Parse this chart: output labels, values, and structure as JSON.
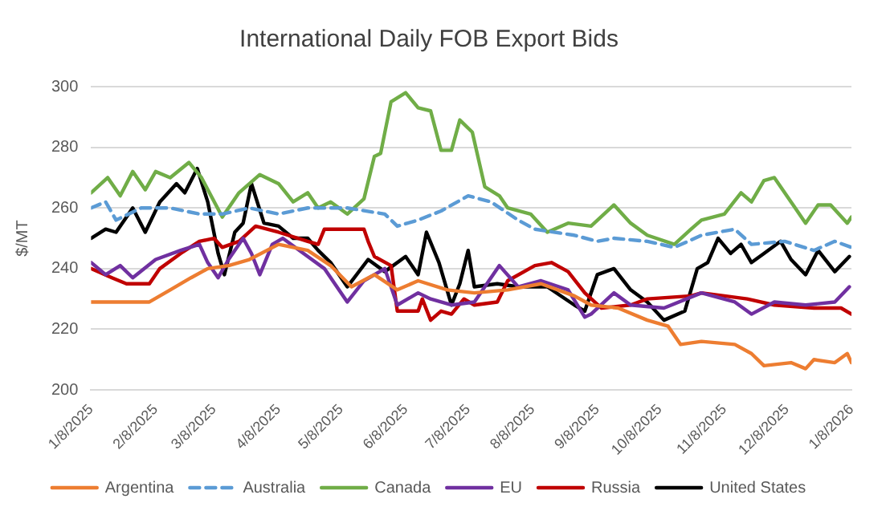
{
  "chart_data": {
    "type": "line",
    "title": "International Daily FOB Export Bids",
    "ylabel": "$/MT",
    "xlim": [
      "2025-01-08",
      "2026-01-08"
    ],
    "xticks": [
      {
        "value": "2025-01-08",
        "label": "1/8/2025"
      },
      {
        "value": "2025-02-08",
        "label": "2/8/2025"
      },
      {
        "value": "2025-03-08",
        "label": "3/8/2025"
      },
      {
        "value": "2025-04-08",
        "label": "4/8/2025"
      },
      {
        "value": "2025-05-08",
        "label": "5/8/2025"
      },
      {
        "value": "2025-06-08",
        "label": "6/8/2025"
      },
      {
        "value": "2025-07-08",
        "label": "7/8/2025"
      },
      {
        "value": "2025-08-08",
        "label": "8/8/2025"
      },
      {
        "value": "2025-09-08",
        "label": "9/8/2025"
      },
      {
        "value": "2025-10-08",
        "label": "10/8/2025"
      },
      {
        "value": "2025-11-08",
        "label": "11/8/2025"
      },
      {
        "value": "2025-12-08",
        "label": "12/8/2025"
      },
      {
        "value": "2026-01-08",
        "label": "1/8/2026"
      }
    ],
    "ylim": [
      200,
      300
    ],
    "yticks": [
      200,
      220,
      240,
      260,
      280,
      300
    ],
    "grid": "y",
    "legend": "bottom",
    "marker": "none",
    "series": [
      {
        "name": "Argentina",
        "color": "#ed7d31",
        "line_style": "solid",
        "x": [
          "2025-01-08",
          "2025-02-05",
          "2025-02-15",
          "2025-02-25",
          "2025-03-05",
          "2025-03-15",
          "2025-03-25",
          "2025-04-08",
          "2025-04-22",
          "2025-05-03",
          "2025-05-13",
          "2025-05-24",
          "2025-06-04",
          "2025-06-14",
          "2025-06-28",
          "2025-07-11",
          "2025-07-27",
          "2025-08-12",
          "2025-08-28",
          "2025-09-05",
          "2025-09-18",
          "2025-10-02",
          "2025-10-12",
          "2025-10-18",
          "2025-10-28",
          "2025-11-13",
          "2025-11-21",
          "2025-11-27",
          "2025-12-10",
          "2025-12-17",
          "2025-12-21",
          "2025-12-31",
          "2026-01-06",
          "2026-01-08"
        ],
        "values": [
          229,
          229,
          233,
          237,
          240,
          241,
          243,
          248,
          246,
          241,
          234,
          238,
          233,
          236,
          233,
          232,
          233,
          235,
          231,
          228,
          227,
          223,
          221,
          215,
          216,
          215,
          212,
          208,
          209,
          207,
          210,
          209,
          212,
          209
        ]
      },
      {
        "name": "Australia",
        "color": "#5b9bd5",
        "line_style": "dashed",
        "x": [
          "2025-01-08",
          "2025-01-15",
          "2025-01-20",
          "2025-02-01",
          "2025-02-15",
          "2025-03-01",
          "2025-03-12",
          "2025-03-25",
          "2025-04-08",
          "2025-04-22",
          "2025-05-11",
          "2025-05-29",
          "2025-06-04",
          "2025-06-14",
          "2025-06-25",
          "2025-07-08",
          "2025-07-19",
          "2025-08-01",
          "2025-08-09",
          "2025-08-28",
          "2025-09-08",
          "2025-09-16",
          "2025-10-02",
          "2025-10-15",
          "2025-10-28",
          "2025-11-13",
          "2025-11-21",
          "2025-12-07",
          "2025-12-21",
          "2025-12-31",
          "2026-01-08"
        ],
        "values": [
          260,
          262,
          256,
          260,
          260,
          258,
          258,
          260,
          258,
          260,
          260,
          258,
          254,
          256,
          259,
          264,
          262,
          256,
          253,
          251,
          249,
          250,
          249,
          247,
          251,
          253,
          248,
          249,
          246,
          249,
          247
        ]
      },
      {
        "name": "Canada",
        "color": "#70ad47",
        "line_style": "solid",
        "x": [
          "2025-01-08",
          "2025-01-16",
          "2025-01-22",
          "2025-01-28",
          "2025-02-03",
          "2025-02-08",
          "2025-02-15",
          "2025-02-24",
          "2025-03-02",
          "2025-03-12",
          "2025-03-20",
          "2025-03-30",
          "2025-04-08",
          "2025-04-15",
          "2025-04-22",
          "2025-04-27",
          "2025-05-03",
          "2025-05-11",
          "2025-05-19",
          "2025-05-24",
          "2025-05-27",
          "2025-06-01",
          "2025-06-08",
          "2025-06-14",
          "2025-06-20",
          "2025-06-25",
          "2025-06-30",
          "2025-07-04",
          "2025-07-10",
          "2025-07-16",
          "2025-07-23",
          "2025-07-27",
          "2025-08-07",
          "2025-08-15",
          "2025-08-25",
          "2025-09-05",
          "2025-09-16",
          "2025-09-24",
          "2025-10-02",
          "2025-10-15",
          "2025-10-23",
          "2025-10-28",
          "2025-11-08",
          "2025-11-16",
          "2025-11-21",
          "2025-11-27",
          "2025-12-02",
          "2025-12-10",
          "2025-12-17",
          "2025-12-23",
          "2025-12-29",
          "2026-01-06",
          "2026-01-08"
        ],
        "values": [
          265,
          270,
          264,
          272,
          266,
          272,
          270,
          275,
          270,
          257,
          265,
          271,
          268,
          262,
          265,
          260,
          262,
          258,
          263,
          277,
          278,
          295,
          298,
          293,
          292,
          279,
          279,
          289,
          285,
          267,
          264,
          260,
          258,
          252,
          255,
          254,
          261,
          255,
          251,
          248,
          253,
          256,
          258,
          265,
          262,
          269,
          270,
          262,
          255,
          261,
          261,
          255,
          257
        ]
      },
      {
        "name": "EU",
        "color": "#7030a0",
        "line_style": "solid",
        "x": [
          "2025-01-08",
          "2025-01-15",
          "2025-01-22",
          "2025-01-28",
          "2025-02-08",
          "2025-02-20",
          "2025-03-01",
          "2025-03-05",
          "2025-03-10",
          "2025-03-15",
          "2025-03-22",
          "2025-03-26",
          "2025-03-30",
          "2025-04-05",
          "2025-04-10",
          "2025-04-22",
          "2025-04-30",
          "2025-05-11",
          "2025-05-19",
          "2025-05-29",
          "2025-06-04",
          "2025-06-14",
          "2025-06-20",
          "2025-06-30",
          "2025-07-11",
          "2025-07-23",
          "2025-08-01",
          "2025-08-12",
          "2025-08-25",
          "2025-09-02",
          "2025-09-05",
          "2025-09-16",
          "2025-09-24",
          "2025-10-10",
          "2025-10-28",
          "2025-11-13",
          "2025-11-21",
          "2025-12-02",
          "2025-12-17",
          "2025-12-31",
          "2026-01-07"
        ],
        "values": [
          242,
          238,
          241,
          237,
          243,
          246,
          248,
          242,
          237,
          243,
          250,
          245,
          238,
          248,
          250,
          244,
          240,
          229,
          236,
          240,
          228,
          232,
          230,
          228,
          229,
          241,
          234,
          236,
          233,
          224,
          225,
          232,
          228,
          227,
          232,
          229,
          225,
          229,
          228,
          229,
          234
        ]
      },
      {
        "name": "Russia",
        "color": "#c00000",
        "line_style": "solid",
        "x": [
          "2025-01-08",
          "2025-01-18",
          "2025-01-25",
          "2025-02-05",
          "2025-02-10",
          "2025-02-20",
          "2025-03-01",
          "2025-03-08",
          "2025-03-12",
          "2025-03-20",
          "2025-03-28",
          "2025-04-08",
          "2025-04-22",
          "2025-04-27",
          "2025-04-30",
          "2025-05-19",
          "2025-05-21",
          "2025-05-24",
          "2025-06-01",
          "2025-06-04",
          "2025-06-14",
          "2025-06-16",
          "2025-06-20",
          "2025-06-25",
          "2025-06-30",
          "2025-07-06",
          "2025-07-11",
          "2025-07-22",
          "2025-07-27",
          "2025-08-09",
          "2025-08-17",
          "2025-08-25",
          "2025-09-02",
          "2025-09-10",
          "2025-09-24",
          "2025-10-02",
          "2025-10-23",
          "2025-10-28",
          "2025-11-19",
          "2025-12-02",
          "2025-12-21",
          "2026-01-03",
          "2026-01-08"
        ],
        "values": [
          240,
          237,
          235,
          235,
          240,
          245,
          249,
          250,
          247,
          249,
          254,
          252,
          249,
          248,
          253,
          253,
          249,
          244,
          241,
          226,
          226,
          230,
          223,
          226,
          225,
          230,
          228,
          229,
          236,
          241,
          242,
          239,
          232,
          227,
          228,
          230,
          231,
          232,
          230,
          228,
          227,
          227,
          225
        ]
      },
      {
        "name": "United States",
        "color": "#000000",
        "line_style": "solid",
        "x": [
          "2025-01-08",
          "2025-01-15",
          "2025-01-20",
          "2025-01-28",
          "2025-02-03",
          "2025-02-10",
          "2025-02-18",
          "2025-02-22",
          "2025-02-28",
          "2025-03-05",
          "2025-03-10",
          "2025-03-13",
          "2025-03-18",
          "2025-03-22",
          "2025-03-26",
          "2025-04-01",
          "2025-04-08",
          "2025-04-15",
          "2025-04-22",
          "2025-04-27",
          "2025-05-03",
          "2025-05-11",
          "2025-05-21",
          "2025-05-29",
          "2025-06-08",
          "2025-06-14",
          "2025-06-18",
          "2025-06-24",
          "2025-06-30",
          "2025-07-04",
          "2025-07-08",
          "2025-07-11",
          "2025-07-22",
          "2025-08-01",
          "2025-08-15",
          "2025-08-28",
          "2025-09-02",
          "2025-09-08",
          "2025-09-16",
          "2025-09-24",
          "2025-10-02",
          "2025-10-10",
          "2025-10-20",
          "2025-10-26",
          "2025-10-31",
          "2025-11-05",
          "2025-11-11",
          "2025-11-16",
          "2025-11-21",
          "2025-11-27",
          "2025-12-05",
          "2025-12-10",
          "2025-12-17",
          "2025-12-23",
          "2025-12-31",
          "2026-01-07"
        ],
        "values": [
          250,
          253,
          252,
          260,
          252,
          262,
          268,
          265,
          273,
          262,
          245,
          238,
          252,
          255,
          268,
          255,
          254,
          250,
          250,
          246,
          242,
          234,
          243,
          239,
          244,
          238,
          252,
          242,
          228,
          235,
          246,
          234,
          235,
          234,
          234,
          228,
          226,
          238,
          240,
          233,
          229,
          223,
          226,
          240,
          242,
          250,
          245,
          248,
          242,
          245,
          249,
          243,
          238,
          246,
          239,
          244
        ]
      }
    ]
  }
}
